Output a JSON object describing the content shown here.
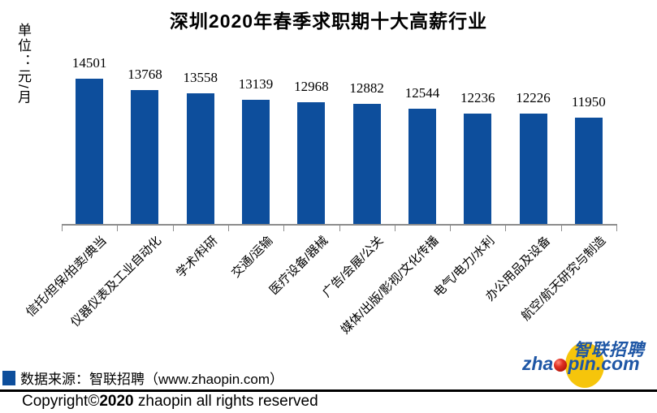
{
  "title": "深圳2020年春季求职期十大高薪行业",
  "unit_label": "单位：元/月",
  "chart_data": {
    "type": "bar",
    "title": "深圳2020年春季求职期十大高薪行业",
    "ylabel": "单位：元/月",
    "xlabel": "",
    "categories": [
      "信托/担保/拍卖/典当",
      "仪器仪表及工业自动化",
      "学术/科研",
      "交通/运输",
      "医疗设备/器械",
      "广告/会展/公关",
      "媒体/出版/影视/文化传播",
      "电气/电力/水利",
      "办公用品及设备",
      "航空/航天研究与制造"
    ],
    "values": [
      14501,
      13768,
      13558,
      13139,
      12968,
      12882,
      12544,
      12236,
      12226,
      11950
    ],
    "ylim": [
      5000,
      15000
    ],
    "grid": false,
    "legend_position": "none",
    "data_labels": true,
    "bar_color": "#0d4e9c",
    "axis_color": "#8c8c8c",
    "label_rotation_deg": -45
  },
  "legend": {
    "marker_color": "#0d4e9c",
    "label": "数据来源：智联招聘（www.zhaopin.com）"
  },
  "footer": {
    "copyright_prefix": "Copyright©",
    "copyright_year": "2020",
    "copyright_suffix": " zhaopin all rights reserved"
  },
  "logo": {
    "cn_text": "智联招聘",
    "latin_prefix": "zha",
    "latin_suffix": "pin.com",
    "blue": "#1e56a5",
    "yellow": "#f6c50b",
    "red": "#c8201c"
  }
}
